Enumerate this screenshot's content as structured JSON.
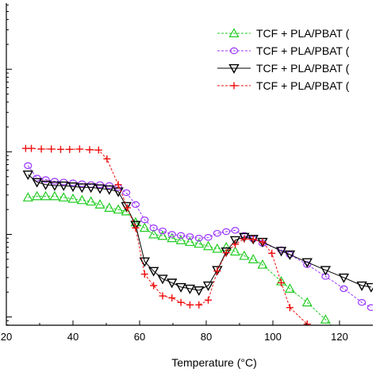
{
  "chart_data": {
    "type": "scatter",
    "title": "",
    "xlabel": "Temperature (°C)",
    "ylabel": "",
    "xlim": [
      20,
      130
    ],
    "ylim_log_decades": [
      -2.1,
      1.8
    ],
    "y_scale": "log",
    "x_ticks": [
      20,
      40,
      60,
      80,
      100,
      120
    ],
    "grid": false,
    "legend_placement": "top-right",
    "series": [
      {
        "name": "TCF + PLA/PBAT (",
        "color": "#22cc22",
        "marker": "triangle-up",
        "line": "dash",
        "x": [
          26.5,
          29.2,
          31.8,
          34.5,
          37.2,
          40.0,
          42.7,
          45.4,
          48.1,
          50.9,
          53.6,
          56.0,
          58.8,
          61.5,
          64.2,
          66.9,
          69.7,
          72.4,
          75.1,
          77.8,
          80.6,
          83.3,
          86.0,
          88.7,
          91.4,
          94.1,
          96.9,
          102.5,
          105.1,
          110.3,
          115.8,
          121.3,
          126.7,
          129.5
        ],
        "y": [
          0.28,
          0.29,
          0.29,
          0.29,
          0.28,
          0.27,
          0.26,
          0.25,
          0.23,
          0.21,
          0.2,
          0.19,
          0.14,
          0.12,
          0.1,
          0.096,
          0.09,
          0.085,
          0.081,
          0.077,
          0.072,
          0.067,
          0.07,
          0.062,
          0.055,
          0.05,
          0.043,
          0.027,
          0.022,
          0.015,
          0.0093,
          0.0054,
          0.0032,
          0.0027
        ]
      },
      {
        "name": "TCF + PLA/PBAT (",
        "color": "#9933ff",
        "marker": "circle",
        "line": "dash",
        "x": [
          26.5,
          29.2,
          31.8,
          34.5,
          37.2,
          40.0,
          42.7,
          45.4,
          48.1,
          50.9,
          53.6,
          56.0,
          58.8,
          61.5,
          64.2,
          66.9,
          69.7,
          72.4,
          75.1,
          77.8,
          80.6,
          83.3,
          86.0,
          88.7,
          91.4,
          94.1,
          96.9,
          102.5,
          105.1,
          110.3,
          115.8,
          121.3,
          126.7,
          129.5
        ],
        "y": [
          0.68,
          0.48,
          0.46,
          0.44,
          0.43,
          0.42,
          0.41,
          0.4,
          0.4,
          0.39,
          0.37,
          0.32,
          0.23,
          0.15,
          0.12,
          0.11,
          0.1,
          0.097,
          0.094,
          0.09,
          0.092,
          0.103,
          0.108,
          0.112,
          0.097,
          0.088,
          0.078,
          0.065,
          0.057,
          0.043,
          0.031,
          0.022,
          0.015,
          0.013
        ]
      },
      {
        "name": "TCF + PLA/PBAT (",
        "color": "#000000",
        "marker": "triangle-down",
        "line": "solid",
        "x": [
          26.5,
          29.2,
          31.8,
          34.5,
          37.2,
          40.0,
          42.7,
          45.4,
          48.1,
          50.9,
          53.6,
          56.0,
          58.8,
          61.5,
          64.2,
          66.9,
          69.7,
          72.4,
          75.1,
          77.8,
          80.6,
          83.3,
          86.0,
          88.7,
          91.4,
          94.1,
          96.9,
          102.5,
          105.1,
          110.3,
          115.8,
          121.3,
          126.7,
          129.5
        ],
        "y": [
          0.53,
          0.43,
          0.4,
          0.39,
          0.39,
          0.38,
          0.37,
          0.37,
          0.36,
          0.35,
          0.33,
          0.22,
          0.13,
          0.047,
          0.036,
          0.029,
          0.026,
          0.023,
          0.022,
          0.021,
          0.024,
          0.037,
          0.062,
          0.085,
          0.093,
          0.088,
          0.081,
          0.063,
          0.057,
          0.046,
          0.037,
          0.03,
          0.024,
          0.023
        ]
      },
      {
        "name": "TCF + PLA/PBAT (",
        "color": "#ee1111",
        "marker": "plus",
        "line": "dash",
        "x": [
          25.8,
          27.5,
          30.5,
          33.5,
          36.3,
          39.0,
          42.0,
          45.0,
          47.7,
          50.2,
          53.6,
          56.3,
          58.8,
          61.5,
          64.2,
          66.9,
          69.7,
          72.4,
          75.1,
          77.8,
          80.6,
          83.3,
          86.0,
          88.7,
          91.4,
          94.1,
          96.9,
          99.7,
          102.5,
          105.1,
          110.3,
          115.8,
          121.3,
          126.7,
          129.5
        ],
        "y": [
          1.1,
          1.1,
          1.08,
          1.08,
          1.07,
          1.07,
          1.08,
          1.06,
          1.05,
          0.82,
          0.4,
          0.21,
          0.12,
          0.033,
          0.024,
          0.018,
          0.017,
          0.015,
          0.014,
          0.014,
          0.016,
          0.036,
          0.06,
          0.076,
          0.088,
          0.087,
          0.081,
          0.059,
          0.026,
          0.013,
          0.0082,
          0.0048,
          0.0026,
          0.0022,
          0.0022
        ]
      }
    ]
  }
}
